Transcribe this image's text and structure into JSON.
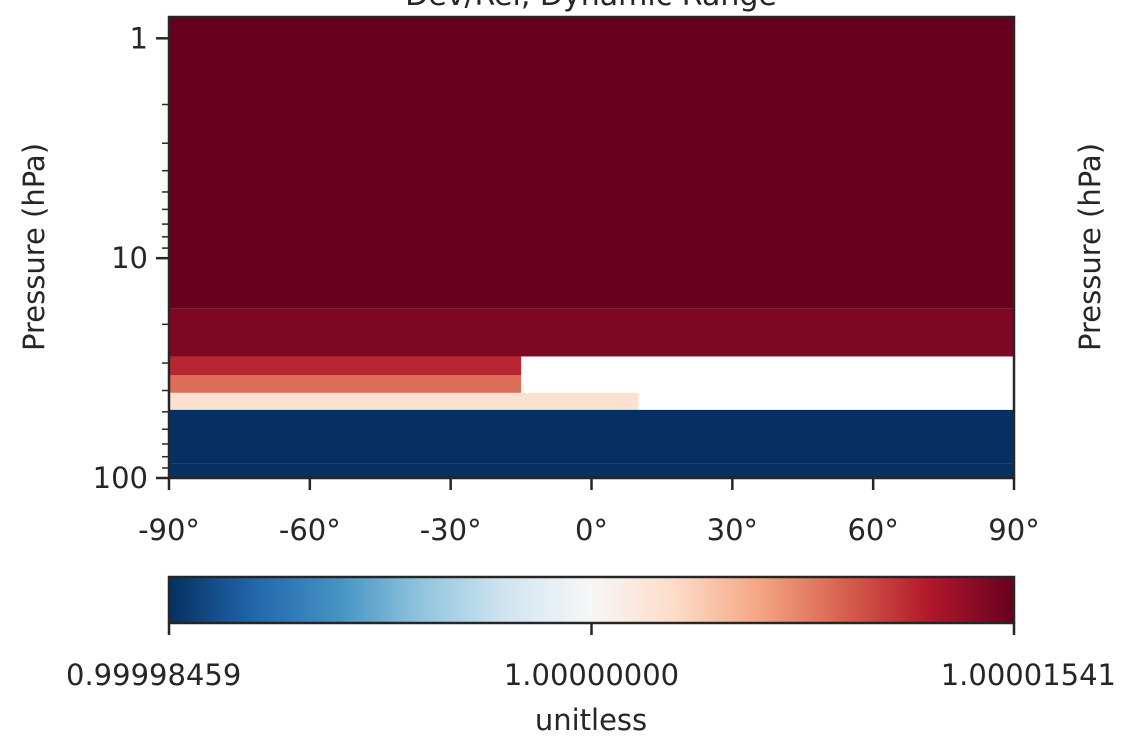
{
  "chart_data": {
    "type": "heatmap",
    "title": "Dev/Rel, Dynamic Range",
    "xlabel": "",
    "ylabel": "Pressure (hPa)",
    "ylabel_right": "Pressure (hPa)",
    "xlim": [
      -90,
      90
    ],
    "ylim": [
      100,
      0.8
    ],
    "y_scale": "log",
    "x_ticks": [
      -90,
      -60,
      -30,
      0,
      30,
      60,
      90
    ],
    "x_tick_labels": [
      "-90°",
      "-60°",
      "-30°",
      "0°",
      "30°",
      "60°",
      "90°"
    ],
    "y_ticks": [
      1,
      10,
      100
    ],
    "y_tick_labels": [
      "1",
      "10",
      "100"
    ],
    "colormap": "RdBu_r",
    "colorbar": {
      "label": "unitless",
      "vmin": 0.99998459,
      "vmax": 1.00001541,
      "ticks": [
        0.99998459,
        1.0,
        1.00001541
      ],
      "tick_labels": [
        "0.99998459",
        "1.00000000",
        "1.00001541"
      ]
    },
    "field_description_bands": [
      {
        "pressure_top": 0.8,
        "pressure_bottom": 17,
        "lat_range": [
          -90,
          90
        ],
        "normalized_value": 1.0
      },
      {
        "pressure_top": 17,
        "pressure_bottom": 28,
        "lat_range": [
          -90,
          90
        ],
        "normalized_value": 0.97
      },
      {
        "pressure_top": 28,
        "pressure_bottom": 34,
        "lat_range": [
          -90,
          -15
        ],
        "normalized_value": 0.88
      },
      {
        "pressure_top": 34,
        "pressure_bottom": 41,
        "lat_range": [
          -90,
          -15
        ],
        "normalized_value": 0.78
      },
      {
        "pressure_top": 41,
        "pressure_bottom": 49,
        "lat_range": [
          -90,
          10
        ],
        "normalized_value": 0.58
      },
      {
        "pressure_top": 49,
        "pressure_bottom": 86,
        "lat_range": [
          -90,
          90
        ],
        "normalized_value": 0.0
      },
      {
        "pressure_top": 86,
        "pressure_bottom": 100,
        "lat_range": [
          -90,
          90
        ],
        "normalized_value": 0.0
      }
    ]
  }
}
